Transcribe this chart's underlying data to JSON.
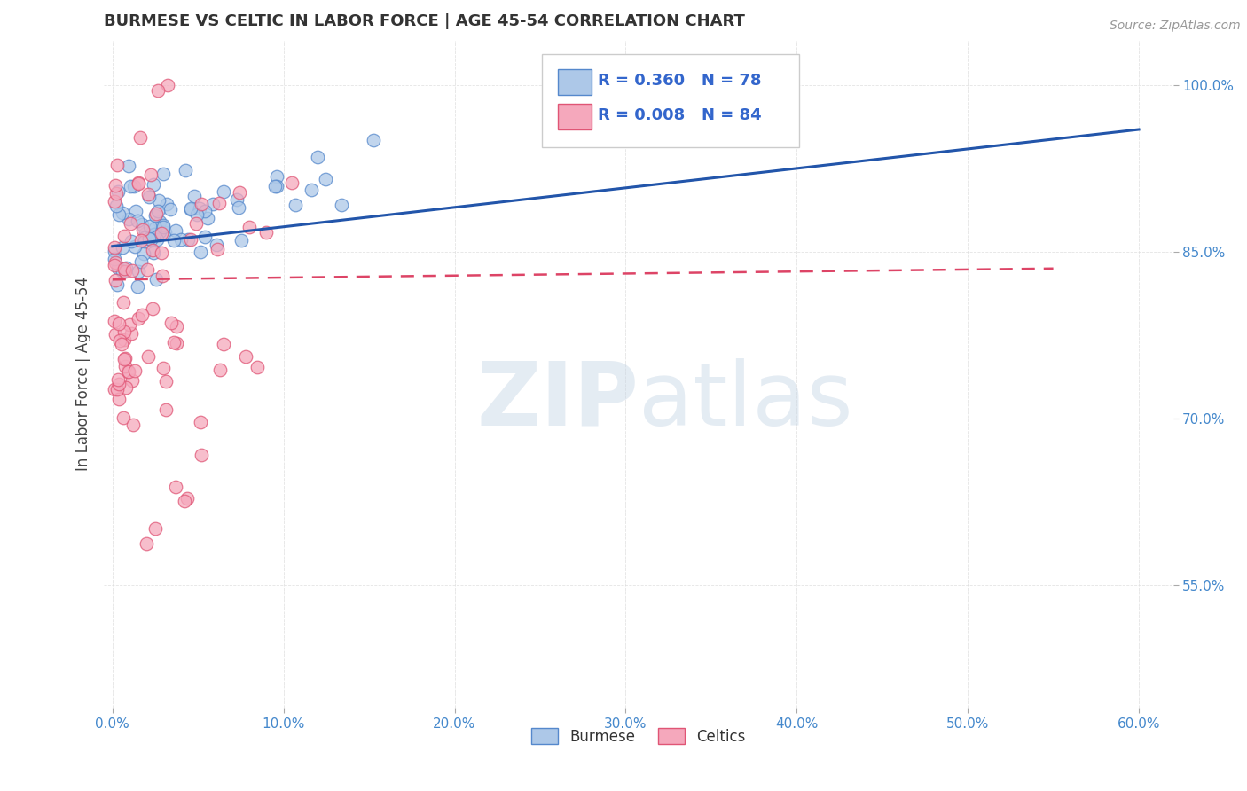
{
  "title": "BURMESE VS CELTIC IN LABOR FORCE | AGE 45-54 CORRELATION CHART",
  "source": "Source: ZipAtlas.com",
  "xlabel_burmese": "Burmese",
  "xlabel_celtics": "Celtics",
  "ylabel": "In Labor Force | Age 45-54",
  "xlim": [
    -0.005,
    0.62
  ],
  "ylim": [
    0.44,
    1.04
  ],
  "xticks": [
    0.0,
    0.1,
    0.2,
    0.3,
    0.4,
    0.5,
    0.6
  ],
  "xticklabels": [
    "0.0%",
    "10.0%",
    "20.0%",
    "30.0%",
    "40.0%",
    "50.0%",
    "60.0%"
  ],
  "yticks": [
    0.55,
    0.7,
    0.85,
    1.0
  ],
  "yticklabels": [
    "55.0%",
    "70.0%",
    "85.0%",
    "100.0%"
  ],
  "burmese_color": "#adc8e8",
  "celtics_color": "#f5a8bc",
  "burmese_edge": "#5588cc",
  "celtics_edge": "#e05575",
  "burmese_R": 0.36,
  "burmese_N": 78,
  "celtics_R": 0.008,
  "celtics_N": 84,
  "burmese_trend_color": "#2255aa",
  "celtics_trend_color": "#dd4466",
  "watermark_zip_color": "#c5d5e5",
  "watermark_atlas_color": "#c5d5e5",
  "legend_R_color": "#3366cc",
  "legend_N_color": "#3366cc",
  "tick_color": "#4488cc",
  "grid_color": "#dddddd"
}
